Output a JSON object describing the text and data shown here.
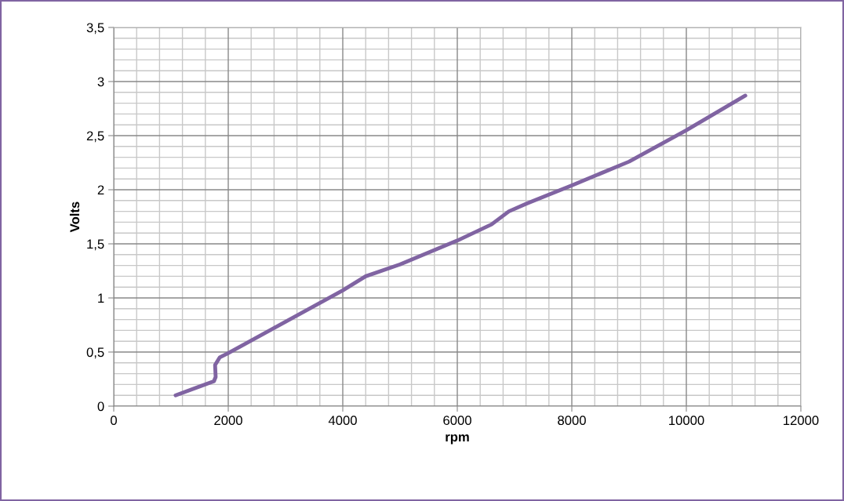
{
  "chart_data": {
    "type": "line",
    "xlabel": "rpm",
    "ylabel": "Volts",
    "series": [
      {
        "color": "#8064a2",
        "x": [
          1080,
          1750,
          1780,
          1770,
          1850,
          2000,
          3000,
          4000,
          4400,
          5000,
          6000,
          6600,
          6900,
          7200,
          8000,
          9000,
          10000,
          11030
        ],
        "values": [
          0.1,
          0.23,
          0.27,
          0.38,
          0.45,
          0.49,
          0.78,
          1.07,
          1.2,
          1.31,
          1.53,
          1.68,
          1.8,
          1.87,
          2.04,
          2.26,
          2.55,
          2.87
        ]
      }
    ],
    "xlim": [
      0,
      12000
    ],
    "xticks": [
      0,
      2000,
      4000,
      6000,
      8000,
      10000,
      12000
    ],
    "ylim": [
      0,
      3.5
    ],
    "yticks": [
      0,
      {
        "value": 0.5,
        "label": "0,5"
      },
      1,
      {
        "value": 1.5,
        "label": "1,5"
      },
      2,
      {
        "value": 2.5,
        "label": "2,5"
      },
      3,
      {
        "value": 3.5,
        "label": "3,5"
      }
    ],
    "grid": true,
    "legend": false,
    "marker": "none",
    "line_style": "solid"
  }
}
